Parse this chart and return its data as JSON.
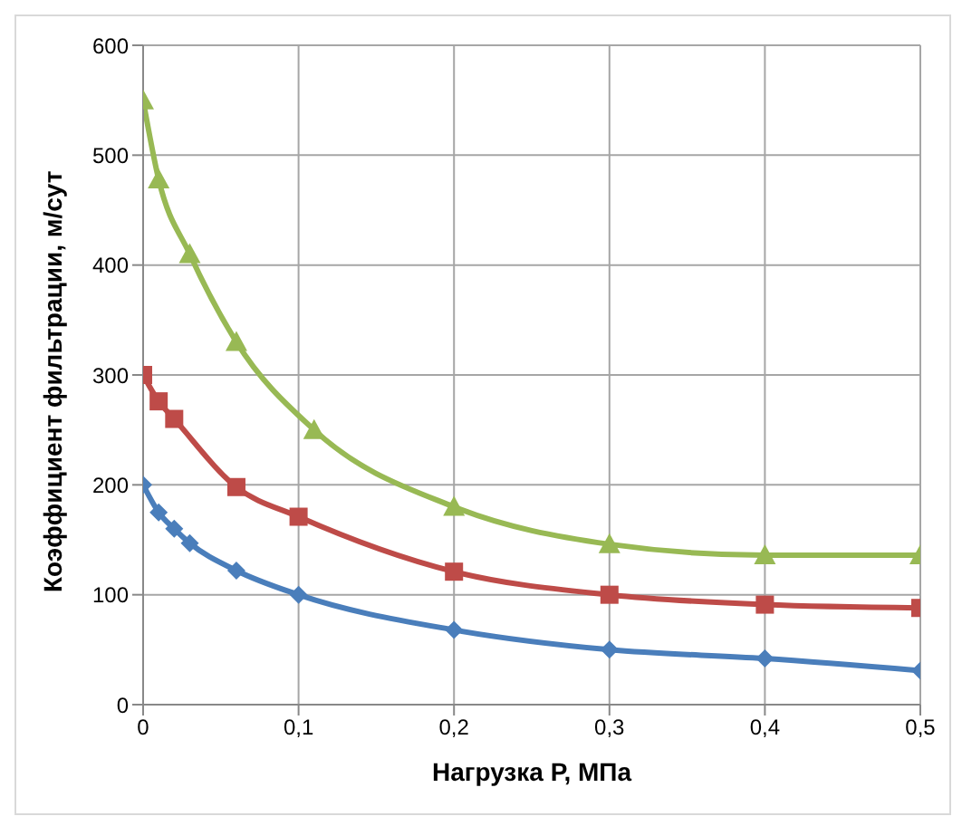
{
  "chart_data": {
    "type": "line",
    "xlabel": "Нагрузка Р, МПа",
    "ylabel": "Коэффициент фильтрации, м/сут",
    "xlim": [
      0,
      0.5
    ],
    "xticks": [
      0,
      {
        "value": 0.1,
        "label": "0,1"
      },
      {
        "value": 0.2,
        "label": "0,2"
      },
      {
        "value": 0.3,
        "label": "0,3"
      },
      {
        "value": 0.4,
        "label": "0,4"
      },
      {
        "value": 0.5,
        "label": "0,5"
      }
    ],
    "ylim": [
      0,
      600
    ],
    "yticks": [
      0,
      100,
      200,
      300,
      400,
      500,
      600
    ],
    "grid": true,
    "line_style": "solid",
    "series": [
      {
        "color": "#4a7ebb",
        "marker": "diamond",
        "x": [
          0,
          0.01,
          0.02,
          0.03,
          0.06,
          0.1,
          0.2,
          0.3,
          0.4,
          0.5
        ],
        "values": [
          200,
          175,
          160,
          147,
          122,
          100,
          68,
          50,
          42,
          31
        ]
      },
      {
        "color": "#be4b48",
        "marker": "square",
        "x": [
          0,
          0.01,
          0.02,
          0.06,
          0.1,
          0.2,
          0.3,
          0.4,
          0.5
        ],
        "values": [
          300,
          276,
          260,
          198,
          171,
          121,
          100,
          91,
          88
        ]
      },
      {
        "color": "#98b954",
        "marker": "triangle",
        "x": [
          0,
          0.01,
          0.03,
          0.06,
          0.11,
          0.2,
          0.3,
          0.4,
          0.5
        ],
        "values": [
          550,
          478,
          410,
          330,
          250,
          180,
          146,
          136,
          136
        ]
      }
    ]
  }
}
